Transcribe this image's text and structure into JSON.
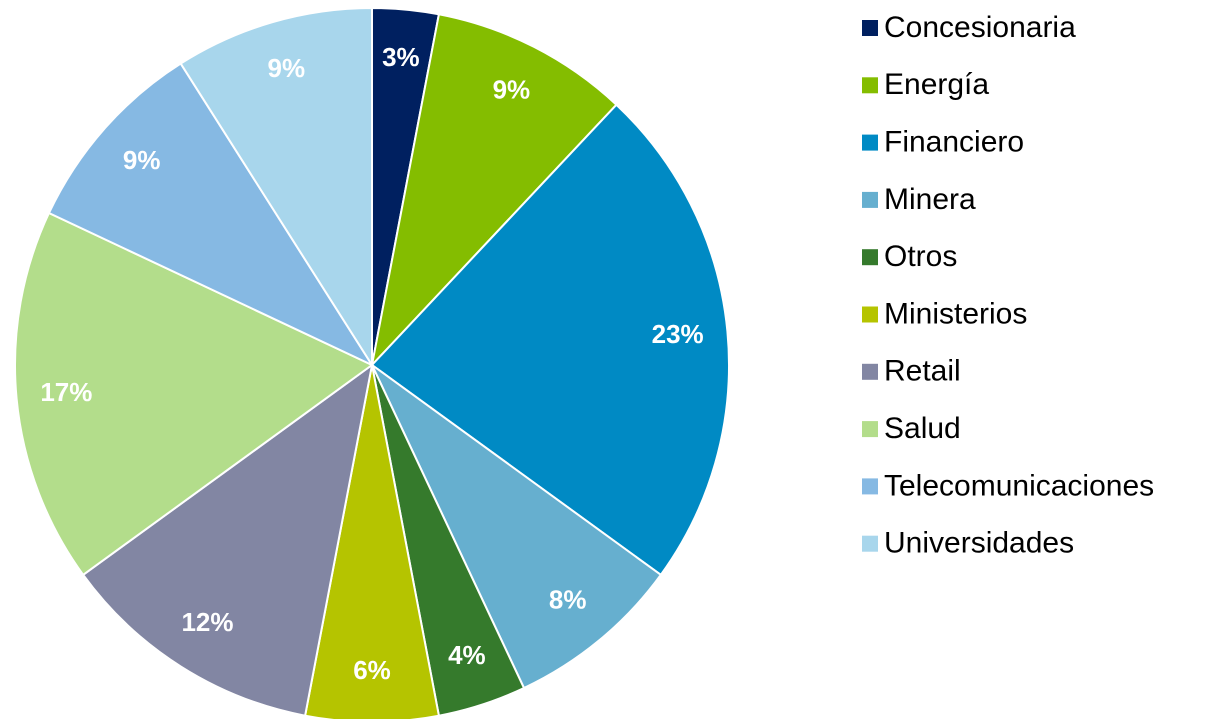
{
  "chart_data": {
    "type": "pie",
    "categories": [
      "Concesionaria",
      "Energía",
      "Financiero",
      "Minera",
      "Otros",
      "Ministerios",
      "Retail",
      "Salud",
      "Telecomunicaciones",
      "Universidades"
    ],
    "values": [
      3,
      9,
      23,
      8,
      4,
      6,
      12,
      17,
      9,
      9
    ],
    "value_labels": [
      "3%",
      "9%",
      "23%",
      "8%",
      "4%",
      "6%",
      "12%",
      "17%",
      "9%",
      "9%"
    ],
    "colors": [
      "#002060",
      "#84bd00",
      "#008ac4",
      "#66afcf",
      "#357a2c",
      "#b5c400",
      "#8286a3",
      "#b3dd8b",
      "#86b9e3",
      "#a8d6ec"
    ],
    "legend": "right"
  }
}
